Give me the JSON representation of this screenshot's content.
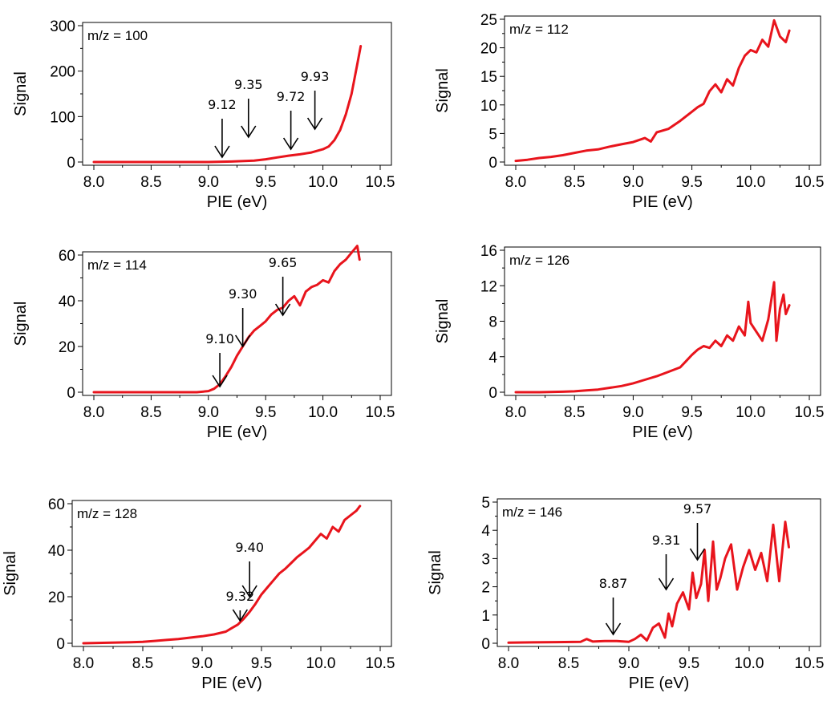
{
  "chart_data": [
    {
      "type": "line",
      "annotation": "m/z = 100",
      "xlabel": "PIE (eV)",
      "ylabel": "Signal",
      "xlim": [
        8.0,
        10.5
      ],
      "ylim": [
        0,
        300
      ],
      "xticks": [
        "8.0",
        "8.5",
        "9.0",
        "9.5",
        "10.0",
        "10.5"
      ],
      "yticks": [
        "0",
        "100",
        "200",
        "300"
      ],
      "line_color": "#e8141c",
      "series": [
        {
          "x": [
            8.0,
            8.5,
            9.0,
            9.2,
            9.4,
            9.5,
            9.6,
            9.7,
            9.8,
            9.9,
            10.0,
            10.05,
            10.1,
            10.15,
            10.2,
            10.25,
            10.3,
            10.33
          ],
          "values": [
            0,
            0,
            0,
            1,
            3,
            6,
            10,
            14,
            17,
            21,
            28,
            34,
            48,
            70,
            105,
            150,
            215,
            255
          ]
        }
      ],
      "arrows": [
        {
          "label": "9.12",
          "x": 9.12
        },
        {
          "label": "9.35",
          "x": 9.35
        },
        {
          "label": "9.72",
          "x": 9.72
        },
        {
          "label": "9.93",
          "x": 9.93
        }
      ]
    },
    {
      "type": "line",
      "annotation": "m/z = 112",
      "xlabel": "PIE (eV)",
      "ylabel": "Signal",
      "xlim": [
        8.0,
        10.5
      ],
      "ylim": [
        0,
        25
      ],
      "xticks": [
        "8.0",
        "8.5",
        "9.0",
        "9.5",
        "10.0",
        "10.5"
      ],
      "yticks": [
        "0",
        "5",
        "10",
        "15",
        "20",
        "25"
      ],
      "line_color": "#e8141c",
      "series": [
        {
          "x": [
            8.0,
            8.1,
            8.2,
            8.3,
            8.4,
            8.5,
            8.6,
            8.7,
            8.8,
            8.9,
            9.0,
            9.1,
            9.15,
            9.2,
            9.3,
            9.4,
            9.5,
            9.55,
            9.6,
            9.65,
            9.7,
            9.75,
            9.8,
            9.85,
            9.9,
            9.95,
            10.0,
            10.05,
            10.1,
            10.15,
            10.2,
            10.25,
            10.3,
            10.33
          ],
          "values": [
            0.2,
            0.4,
            0.7,
            0.9,
            1.2,
            1.6,
            2.0,
            2.2,
            2.7,
            3.1,
            3.5,
            4.2,
            3.6,
            5.2,
            5.8,
            7.2,
            8.8,
            9.6,
            10.2,
            12.4,
            13.6,
            12.2,
            14.5,
            13.4,
            16.5,
            18.6,
            19.6,
            19.2,
            21.4,
            20.2,
            24.8,
            22.0,
            21.0,
            23.0
          ]
        }
      ]
    },
    {
      "type": "line",
      "annotation": "m/z = 114",
      "xlabel": "PIE (eV)",
      "ylabel": "Signal",
      "xlim": [
        8.0,
        10.5
      ],
      "ylim": [
        0,
        70
      ],
      "xticks": [
        "8.0",
        "8.5",
        "9.0",
        "9.5",
        "10.0",
        "10.5"
      ],
      "yticks": [
        "0",
        "20",
        "40",
        "60"
      ],
      "line_color": "#e8141c",
      "series": [
        {
          "x": [
            8.0,
            8.5,
            8.9,
            9.0,
            9.05,
            9.1,
            9.15,
            9.2,
            9.25,
            9.3,
            9.35,
            9.4,
            9.45,
            9.5,
            9.55,
            9.6,
            9.65,
            9.7,
            9.75,
            9.8,
            9.85,
            9.9,
            9.95,
            10.0,
            10.05,
            10.1,
            10.15,
            10.2,
            10.25,
            10.3,
            10.32
          ],
          "values": [
            0,
            0,
            0,
            0.5,
            1.5,
            3.5,
            7,
            11,
            16,
            20,
            24,
            27,
            29,
            31,
            34,
            36,
            37,
            40,
            42,
            38,
            44,
            46,
            47,
            49,
            48,
            53,
            56,
            58,
            61,
            64,
            58
          ]
        }
      ],
      "arrows": [
        {
          "label": "9.10",
          "x": 9.1
        },
        {
          "label": "9.30",
          "x": 9.3
        },
        {
          "label": "9.65",
          "x": 9.65
        }
      ]
    },
    {
      "type": "line",
      "annotation": "m/z = 126",
      "xlabel": "PIE (eV)",
      "ylabel": "Signal",
      "xlim": [
        8.0,
        10.5
      ],
      "ylim": [
        0,
        16
      ],
      "xticks": [
        "8.0",
        "8.5",
        "9.0",
        "9.5",
        "10.0",
        "10.5"
      ],
      "yticks": [
        "0",
        "4",
        "8",
        "12",
        "16"
      ],
      "line_color": "#e8141c",
      "series": [
        {
          "x": [
            8.0,
            8.2,
            8.4,
            8.5,
            8.6,
            8.7,
            8.8,
            8.9,
            9.0,
            9.1,
            9.2,
            9.3,
            9.4,
            9.45,
            9.5,
            9.55,
            9.6,
            9.65,
            9.7,
            9.75,
            9.8,
            9.85,
            9.9,
            9.95,
            9.98,
            10.0,
            10.05,
            10.1,
            10.15,
            10.2,
            10.22,
            10.25,
            10.28,
            10.3,
            10.33
          ],
          "values": [
            0,
            0,
            0.05,
            0.1,
            0.2,
            0.3,
            0.5,
            0.7,
            1.0,
            1.4,
            1.8,
            2.3,
            2.8,
            3.5,
            4.2,
            4.8,
            5.2,
            5.0,
            5.8,
            5.2,
            6.4,
            5.8,
            7.4,
            6.4,
            10.2,
            7.8,
            6.8,
            5.8,
            8.2,
            12.4,
            5.8,
            9.4,
            11.0,
            8.8,
            9.8
          ]
        }
      ]
    },
    {
      "type": "line",
      "annotation": "m/z = 128",
      "xlabel": "PIE (eV)",
      "ylabel": "Signal",
      "xlim": [
        8.0,
        10.5
      ],
      "ylim": [
        0,
        70
      ],
      "xticks": [
        "8.0",
        "8.5",
        "9.0",
        "9.5",
        "10.0",
        "10.5"
      ],
      "yticks": [
        "0",
        "20",
        "40",
        "60"
      ],
      "line_color": "#e8141c",
      "series": [
        {
          "x": [
            8.0,
            8.2,
            8.4,
            8.5,
            8.6,
            8.7,
            8.8,
            8.9,
            9.0,
            9.1,
            9.2,
            9.25,
            9.3,
            9.35,
            9.4,
            9.45,
            9.5,
            9.55,
            9.6,
            9.65,
            9.7,
            9.75,
            9.8,
            9.85,
            9.9,
            9.95,
            10.0,
            10.05,
            10.1,
            10.15,
            10.2,
            10.25,
            10.3,
            10.33
          ],
          "values": [
            0,
            0.2,
            0.4,
            0.6,
            1.0,
            1.4,
            1.8,
            2.4,
            3.0,
            3.8,
            5.0,
            6.5,
            8.0,
            10.5,
            13.5,
            17.0,
            21.0,
            24.0,
            27.0,
            30.0,
            32.0,
            34.5,
            37.0,
            39.0,
            41.0,
            44.0,
            47.0,
            45.0,
            50.0,
            48.0,
            53.0,
            55.0,
            57.0,
            59.0
          ]
        }
      ],
      "arrows": [
        {
          "label": "9.32",
          "x": 9.32
        },
        {
          "label": "9.40",
          "x": 9.4
        }
      ]
    },
    {
      "type": "line",
      "annotation": "m/z = 146",
      "xlabel": "PIE (eV)",
      "ylabel": "Signal",
      "xlim": [
        8.0,
        10.5
      ],
      "ylim": [
        0,
        5
      ],
      "xticks": [
        "8.0",
        "8.5",
        "9.0",
        "9.5",
        "10.0",
        "10.5"
      ],
      "yticks": [
        "0",
        "1",
        "2",
        "3",
        "4",
        "5"
      ],
      "line_color": "#e8141c",
      "series": [
        {
          "x": [
            8.0,
            8.2,
            8.4,
            8.6,
            8.65,
            8.7,
            8.8,
            8.9,
            9.0,
            9.05,
            9.1,
            9.15,
            9.2,
            9.25,
            9.3,
            9.33,
            9.36,
            9.4,
            9.45,
            9.5,
            9.53,
            9.56,
            9.6,
            9.63,
            9.66,
            9.7,
            9.73,
            9.76,
            9.8,
            9.85,
            9.9,
            9.95,
            10.0,
            10.05,
            10.1,
            10.15,
            10.2,
            10.25,
            10.3,
            10.33
          ],
          "values": [
            0.02,
            0.03,
            0.04,
            0.05,
            0.15,
            0.06,
            0.08,
            0.08,
            0.05,
            0.15,
            0.3,
            0.1,
            0.55,
            0.7,
            0.2,
            1.05,
            0.6,
            1.4,
            1.8,
            1.2,
            2.5,
            1.6,
            2.1,
            3.3,
            1.5,
            3.6,
            1.9,
            2.3,
            3.0,
            3.5,
            1.9,
            2.7,
            3.3,
            2.6,
            3.2,
            2.2,
            4.2,
            2.2,
            4.3,
            3.4
          ]
        }
      ],
      "arrows": [
        {
          "label": "8.87",
          "x": 8.87
        },
        {
          "label": "9.31",
          "x": 9.31
        },
        {
          "label": "9.57",
          "x": 9.57
        }
      ]
    }
  ]
}
